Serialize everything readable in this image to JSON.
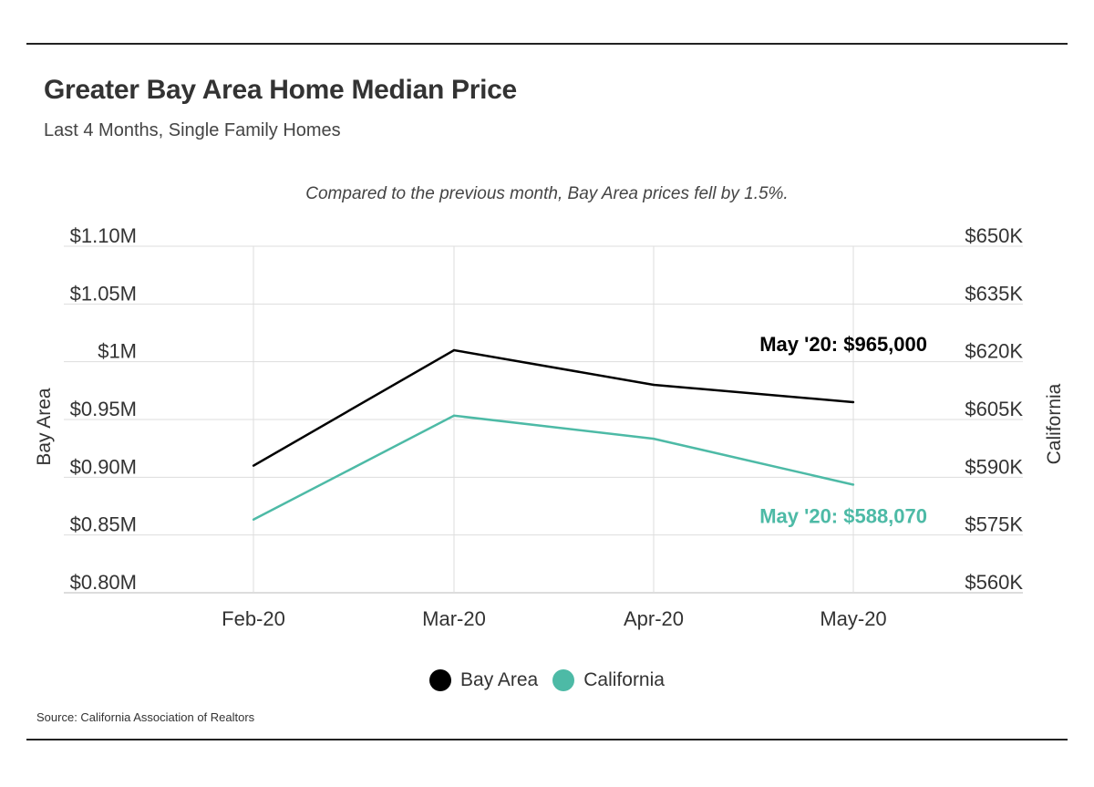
{
  "header": {
    "title": "Greater Bay Area Home Median Price",
    "subtitle": "Last 4 Months, Single Family Homes"
  },
  "annotation": "Compared to the previous month, Bay Area prices fell by 1.5%.",
  "source": "Source:  California Association of Realtors",
  "chart_data": {
    "type": "line",
    "categories": [
      "Feb-20",
      "Mar-20",
      "Apr-20",
      "May-20"
    ],
    "series": [
      {
        "name": "Bay Area",
        "axis": "left",
        "color": "#000000",
        "values": [
          910000,
          1010000,
          980000,
          965000
        ],
        "end_label": "May '20: $965,000"
      },
      {
        "name": "California",
        "axis": "right",
        "color": "#4dbaa6",
        "values": [
          579000,
          606000,
          600000,
          588070
        ],
        "end_label": "May '20: $588,070"
      }
    ],
    "left_axis": {
      "label": "Bay Area",
      "ylim": [
        800000,
        1100000
      ],
      "ticks": [
        800000,
        850000,
        900000,
        950000,
        1000000,
        1050000,
        1100000
      ],
      "tick_labels": [
        "$0.80M",
        "$0.85M",
        "$0.90M",
        "$0.95M",
        "$1M",
        "$1.05M",
        "$1.10M"
      ]
    },
    "right_axis": {
      "label": "California",
      "ylim": [
        560000,
        650000
      ],
      "ticks": [
        560000,
        575000,
        590000,
        605000,
        620000,
        635000,
        650000
      ],
      "tick_labels": [
        "$560K",
        "$575K",
        "$590K",
        "$605K",
        "$620K",
        "$635K",
        "$650K"
      ]
    },
    "grid": true,
    "legend": "bottom-center"
  }
}
